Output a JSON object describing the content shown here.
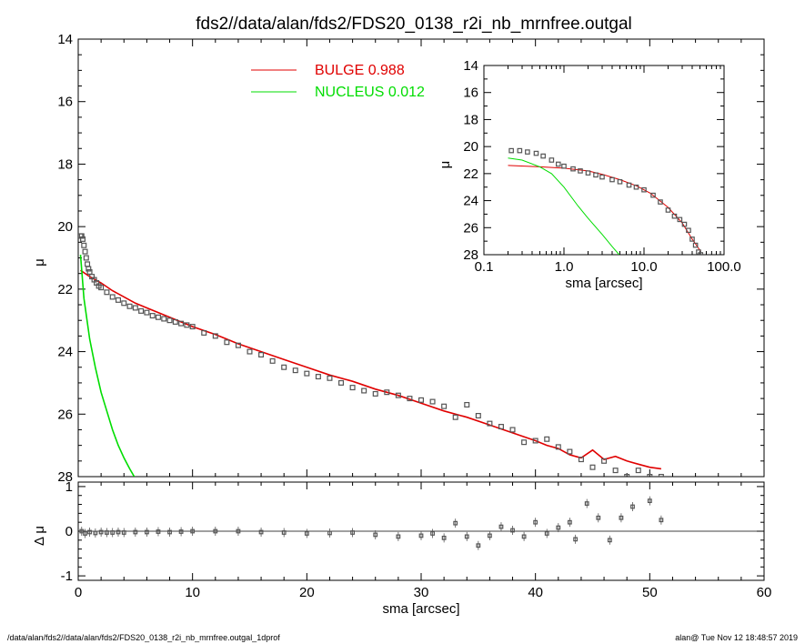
{
  "title": "fds2//data/alan/fds2/FDS20_0138_r2i_nb_mrnfree.outgal",
  "footer": {
    "left": "/data/alan/fds2//data/alan/fds2/FDS20_0138_r2i_nb_mrnfree.outgal_1dprof",
    "right": "alan@  Tue Nov 12 18:48:57 2019"
  },
  "colors": {
    "bulge": "#e00000",
    "nucleus": "#00dd00",
    "data": "#555555",
    "axis": "#000000"
  },
  "chart_data": [
    {
      "id": "main",
      "type": "scatter",
      "xlabel": "",
      "ylabel": "μ",
      "xlim": [
        0,
        60
      ],
      "ylim": [
        28,
        14
      ],
      "y_reversed": true,
      "xticks": [
        0,
        10,
        20,
        30,
        40,
        50,
        60
      ],
      "yticks": [
        14,
        16,
        18,
        20,
        22,
        24,
        26,
        28
      ],
      "legend_position": "top-center",
      "series": [
        {
          "name": "BULGE  0.988",
          "kind": "line",
          "color": "#e00000",
          "x": [
            0.2,
            1,
            2,
            3,
            4,
            5,
            6,
            8,
            10,
            12,
            14,
            16,
            18,
            20,
            22,
            24,
            26,
            28,
            30,
            32,
            34,
            36,
            38,
            40,
            41,
            42,
            43,
            44,
            45,
            46,
            47,
            48,
            49,
            50,
            51
          ],
          "y": [
            21.4,
            21.6,
            21.8,
            22.05,
            22.25,
            22.45,
            22.6,
            22.9,
            23.2,
            23.45,
            23.75,
            24.0,
            24.25,
            24.5,
            24.75,
            24.95,
            25.2,
            25.4,
            25.65,
            25.9,
            26.1,
            26.35,
            26.6,
            26.85,
            27.0,
            27.1,
            27.3,
            27.4,
            27.15,
            27.45,
            27.35,
            27.5,
            27.6,
            27.7,
            27.75
          ]
        },
        {
          "name": "NUCLEUS  0.012",
          "kind": "line",
          "color": "#00dd00",
          "x": [
            0.2,
            0.5,
            1.0,
            1.5,
            2.0,
            2.5,
            3.0,
            3.5,
            4.0,
            4.5,
            4.9
          ],
          "y": [
            20.9,
            22.3,
            23.6,
            24.5,
            25.3,
            25.9,
            26.5,
            27.0,
            27.4,
            27.75,
            28.0
          ]
        },
        {
          "name": "",
          "kind": "points",
          "color": "#555555",
          "x": [
            0.2,
            0.3,
            0.4,
            0.5,
            0.6,
            0.7,
            0.8,
            0.9,
            1.0,
            1.2,
            1.4,
            1.6,
            1.8,
            2.0,
            2.5,
            3.0,
            3.5,
            4.0,
            4.5,
            5.0,
            5.5,
            6.0,
            6.5,
            7.0,
            7.5,
            8.0,
            8.5,
            9.0,
            9.5,
            10.0,
            11.0,
            12.0,
            13.0,
            14.0,
            15.0,
            16.0,
            17.0,
            18.0,
            19.0,
            20.0,
            21.0,
            22.0,
            23.0,
            24.0,
            25.0,
            26.0,
            27.0,
            28.0,
            29.0,
            30.0,
            31.0,
            32.0,
            33.0,
            34.0,
            35.0,
            36.0,
            37.0,
            38.0,
            39.0,
            40.0,
            41.0,
            42.0,
            43.0,
            44.0,
            45.0,
            46.0,
            47.0,
            48.0,
            49.0,
            50.0,
            51.0
          ],
          "y": [
            20.3,
            20.3,
            20.4,
            20.6,
            20.8,
            21.0,
            21.2,
            21.35,
            21.45,
            21.6,
            21.7,
            21.8,
            21.9,
            21.95,
            22.1,
            22.25,
            22.35,
            22.45,
            22.55,
            22.6,
            22.7,
            22.75,
            22.85,
            22.9,
            22.95,
            23.0,
            23.05,
            23.1,
            23.15,
            23.2,
            23.4,
            23.5,
            23.7,
            23.8,
            24.0,
            24.1,
            24.3,
            24.5,
            24.6,
            24.7,
            24.8,
            24.85,
            25.0,
            25.15,
            25.25,
            25.35,
            25.3,
            25.4,
            25.5,
            25.55,
            25.6,
            25.75,
            26.1,
            25.7,
            26.05,
            26.3,
            26.4,
            26.5,
            26.9,
            26.85,
            26.8,
            27.05,
            27.2,
            27.45,
            27.7,
            27.5,
            27.8,
            28.0,
            27.8,
            28.0,
            28.0
          ]
        }
      ],
      "legend": [
        {
          "label": "BULGE  0.988",
          "color": "#e00000"
        },
        {
          "label": "NUCLEUS  0.012",
          "color": "#00dd00"
        }
      ]
    },
    {
      "id": "inset",
      "type": "scatter",
      "xlabel": "sma [arcsec]",
      "ylabel": "μ",
      "x_scale": "log",
      "xlim": [
        0.1,
        100
      ],
      "ylim": [
        28,
        14
      ],
      "y_reversed": true,
      "xticks": [
        0.1,
        1.0,
        10.0,
        100.0
      ],
      "xtick_labels": [
        "0.1",
        "1.0",
        "10.0",
        "100.0"
      ],
      "yticks": [
        14,
        16,
        18,
        20,
        22,
        24,
        26,
        28
      ],
      "series": [
        {
          "name": "",
          "kind": "line",
          "color": "#e00000",
          "x": [
            0.2,
            0.5,
            1,
            2,
            3,
            5,
            8,
            12,
            20,
            30,
            40,
            51
          ],
          "y": [
            21.4,
            21.5,
            21.6,
            21.8,
            22.05,
            22.45,
            22.9,
            23.45,
            24.5,
            25.65,
            26.85,
            27.75
          ]
        },
        {
          "name": "",
          "kind": "line",
          "color": "#00dd00",
          "x": [
            0.2,
            0.3,
            0.5,
            0.7,
            1.0,
            1.5,
            2.0,
            3.0,
            4.0,
            4.9
          ],
          "y": [
            20.85,
            21.0,
            21.5,
            22.0,
            23.0,
            24.4,
            25.3,
            26.5,
            27.4,
            28.0
          ]
        },
        {
          "name": "",
          "kind": "points",
          "color": "#555555",
          "x": [
            0.22,
            0.28,
            0.35,
            0.45,
            0.55,
            0.7,
            0.85,
            1.0,
            1.3,
            1.6,
            2.0,
            2.5,
            3.0,
            4.0,
            5.0,
            6.5,
            8.0,
            10.0,
            13.0,
            16.0,
            20.0,
            24.0,
            28.0,
            32.0,
            36.0,
            40.0,
            44.0,
            48.0,
            51.0
          ],
          "y": [
            20.3,
            20.3,
            20.4,
            20.5,
            20.7,
            21.0,
            21.3,
            21.45,
            21.65,
            21.8,
            21.95,
            22.1,
            22.25,
            22.45,
            22.6,
            22.85,
            23.0,
            23.2,
            23.6,
            24.1,
            24.7,
            25.15,
            25.4,
            25.75,
            26.2,
            26.85,
            27.3,
            27.8,
            28.0
          ]
        }
      ]
    },
    {
      "id": "residual",
      "type": "scatter",
      "xlabel": "sma [arcsec]",
      "ylabel": "Δ μ",
      "xlim": [
        0,
        60
      ],
      "ylim": [
        -1.1,
        1.1
      ],
      "xticks": [
        0,
        10,
        20,
        30,
        40,
        50,
        60
      ],
      "yticks": [
        -1,
        0,
        1
      ],
      "series": [
        {
          "name": "",
          "kind": "points",
          "color": "#555555",
          "x": [
            0.3,
            0.6,
            1.0,
            1.5,
            2.0,
            2.5,
            3.0,
            3.5,
            4.0,
            5.0,
            6.0,
            7.0,
            8.0,
            9.0,
            10.0,
            12.0,
            14.0,
            16.0,
            18.0,
            20.0,
            22.0,
            24.0,
            26.0,
            28.0,
            30.0,
            31.0,
            32.0,
            33.0,
            34.0,
            35.0,
            36.0,
            37.0,
            38.0,
            39.0,
            40.0,
            41.0,
            42.0,
            43.0,
            43.5,
            44.5,
            45.5,
            46.5,
            47.5,
            48.5,
            50.0,
            51.0
          ],
          "y": [
            0.0,
            -0.05,
            -0.02,
            -0.04,
            -0.02,
            -0.03,
            -0.03,
            -0.02,
            -0.03,
            -0.02,
            -0.02,
            -0.01,
            -0.02,
            -0.01,
            0.0,
            0.0,
            0.0,
            -0.02,
            -0.03,
            -0.05,
            -0.04,
            -0.03,
            -0.08,
            -0.12,
            -0.1,
            -0.05,
            -0.15,
            0.18,
            -0.12,
            -0.32,
            -0.1,
            0.1,
            0.02,
            -0.12,
            0.2,
            -0.05,
            0.08,
            0.2,
            -0.18,
            0.62,
            0.3,
            -0.2,
            0.3,
            0.55,
            0.68,
            0.25
          ]
        }
      ]
    }
  ]
}
